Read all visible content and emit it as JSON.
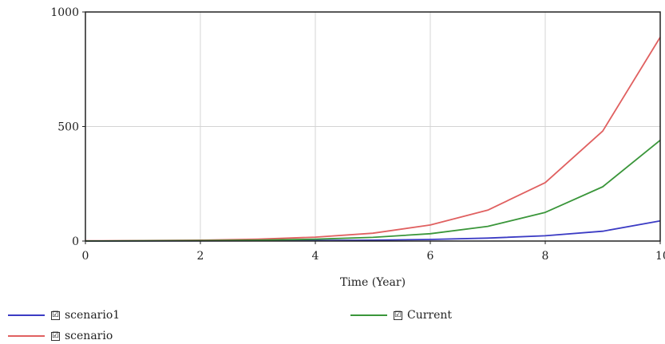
{
  "chart_data": {
    "type": "line",
    "title": "",
    "xlabel": "Time (Year)",
    "ylabel": "",
    "xlim": [
      0,
      10
    ],
    "ylim": [
      0,
      1000
    ],
    "x_ticks": [
      "0",
      "2",
      "4",
      "6",
      "8",
      "10"
    ],
    "y_ticks": [
      "0",
      "500",
      "1000"
    ],
    "grid": true,
    "x": [
      0,
      1,
      2,
      3,
      4,
      5,
      6,
      7,
      8,
      9,
      10
    ],
    "series": [
      {
        "name": "scenario1",
        "color": "#3b3bc4",
        "values": [
          0,
          0.5,
          1,
          1.5,
          2.5,
          4,
          7,
          13,
          23,
          43,
          88
        ]
      },
      {
        "name": "scenario",
        "color": "#e06060",
        "values": [
          1,
          2,
          4,
          8,
          17,
          34,
          70,
          135,
          255,
          480,
          890
        ]
      },
      {
        "name": "Current",
        "color": "#3a963a",
        "values": [
          0.5,
          1,
          2,
          4,
          8,
          16,
          32,
          64,
          125,
          237,
          440
        ]
      }
    ]
  },
  "legend": [
    {
      "label": "scenario1",
      "checked": "☑",
      "color": "#3b3bc4"
    },
    {
      "label": "scenario",
      "checked": "☑",
      "color": "#e06060"
    },
    {
      "label": "Current",
      "checked": "☑",
      "color": "#3a963a"
    }
  ]
}
